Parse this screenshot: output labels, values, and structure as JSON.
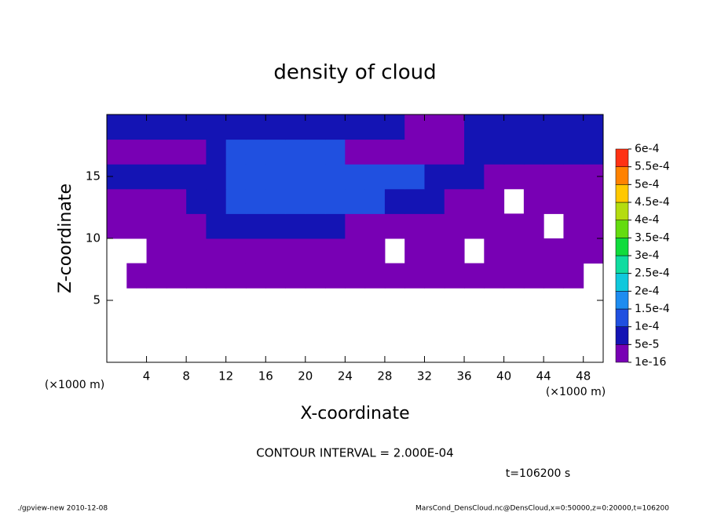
{
  "chart_data": {
    "type": "contour",
    "title": "density of cloud",
    "xlabel": "X-coordinate",
    "ylabel": "Z-coordinate",
    "x_unit": "(×1000 m)",
    "interval_note": "CONTOUR INTERVAL = 2.000E-04",
    "time_note": "t=106200 s",
    "footer_left": "./gpview-new  2010-12-08",
    "footer_right": "MarsCond_DensCloud.nc@DensCloud,x=0:50000,z=0:20000,t=106200",
    "xlim": [
      0,
      50
    ],
    "ylim": [
      0,
      20
    ],
    "xticks": [
      4,
      8,
      12,
      16,
      20,
      24,
      28,
      32,
      36,
      40,
      44,
      48
    ],
    "yticks": [
      5,
      10,
      15
    ],
    "x": [
      1,
      3,
      5,
      7,
      9,
      11,
      13,
      15,
      17,
      19,
      21,
      23,
      25,
      27,
      29,
      31,
      33,
      35,
      37,
      39,
      41,
      43,
      45,
      47,
      49
    ],
    "y": [
      1,
      3,
      5,
      7,
      9,
      11,
      13,
      15,
      17,
      19
    ],
    "z": [
      [
        null,
        null,
        null,
        null,
        null,
        null,
        null,
        null,
        null,
        null,
        null,
        null,
        null,
        null,
        null,
        null,
        null,
        null,
        null,
        null,
        null,
        null,
        null,
        null,
        null
      ],
      [
        null,
        null,
        null,
        null,
        null,
        null,
        null,
        null,
        null,
        null,
        null,
        null,
        null,
        null,
        null,
        null,
        null,
        null,
        null,
        null,
        null,
        null,
        null,
        null,
        null
      ],
      [
        null,
        null,
        null,
        null,
        null,
        null,
        null,
        null,
        null,
        null,
        null,
        null,
        null,
        null,
        null,
        null,
        null,
        null,
        null,
        null,
        null,
        null,
        null,
        null,
        null
      ],
      [
        null,
        2e-05,
        2e-05,
        2e-05,
        2e-05,
        2e-05,
        2e-05,
        2e-05,
        2e-05,
        2e-05,
        2e-05,
        2e-05,
        2e-05,
        2e-05,
        2e-05,
        2e-05,
        2e-05,
        2e-05,
        2e-05,
        2e-05,
        2e-05,
        2e-05,
        2e-05,
        2e-05,
        null
      ],
      [
        null,
        null,
        2e-05,
        2e-05,
        2e-05,
        2e-05,
        2e-05,
        2e-05,
        2e-05,
        2e-05,
        2e-05,
        2e-05,
        2e-05,
        3e-05,
        null,
        2e-05,
        2e-05,
        2e-05,
        null,
        2e-05,
        2e-05,
        2e-05,
        2e-05,
        2e-05,
        2e-05
      ],
      [
        3e-05,
        3e-05,
        3e-05,
        3e-05,
        3e-05,
        8e-05,
        8e-05,
        8e-05,
        8e-05,
        8e-05,
        8e-05,
        5e-05,
        3e-05,
        3e-05,
        3e-05,
        3e-05,
        3e-05,
        3e-05,
        3e-05,
        3e-05,
        3e-05,
        3e-05,
        null,
        3e-05,
        3e-05
      ],
      [
        4e-05,
        4e-05,
        4e-05,
        4e-05,
        7e-05,
        7e-05,
        0.00011,
        0.00011,
        0.00011,
        0.00011,
        0.00011,
        0.00011,
        0.00011,
        0.00011,
        8e-05,
        8e-05,
        8e-05,
        3e-05,
        3e-05,
        3e-05,
        null,
        3e-05,
        3e-05,
        3e-05,
        3e-05
      ],
      [
        7e-05,
        7e-05,
        7e-05,
        9e-05,
        9e-05,
        9e-05,
        0.00012,
        0.00012,
        0.00012,
        0.00012,
        0.00012,
        0.00012,
        0.00011,
        0.00011,
        0.00011,
        0.00011,
        6e-05,
        6e-05,
        6e-05,
        4e-05,
        4e-05,
        4e-05,
        4e-05,
        4e-05,
        4e-05
      ],
      [
        4e-05,
        4e-05,
        4e-05,
        4e-05,
        4e-05,
        6e-05,
        0.00011,
        0.00011,
        0.00011,
        0.00011,
        0.00011,
        0.00011,
        3e-05,
        3e-05,
        3e-05,
        3e-05,
        3e-05,
        3e-05,
        8e-05,
        8e-05,
        8e-05,
        8e-05,
        8e-05,
        8e-05,
        8e-05
      ],
      [
        7e-05,
        7e-05,
        7e-05,
        7e-05,
        7e-05,
        7e-05,
        7e-05,
        9e-05,
        9e-05,
        9e-05,
        9e-05,
        9e-05,
        9e-05,
        9e-05,
        9e-05,
        3e-05,
        3e-05,
        3e-05,
        7e-05,
        7e-05,
        7e-05,
        7e-05,
        7e-05,
        7e-05,
        7e-05
      ]
    ],
    "levels": [
      {
        "value": 1e-16,
        "label": "1e-16"
      },
      {
        "value": 5e-05,
        "label": "5e-5"
      },
      {
        "value": 0.0001,
        "label": "1e-4"
      },
      {
        "value": 0.00015,
        "label": "1.5e-4"
      },
      {
        "value": 0.0002,
        "label": "2e-4"
      },
      {
        "value": 0.00025,
        "label": "2.5e-4"
      },
      {
        "value": 0.0003,
        "label": "3e-4"
      },
      {
        "value": 0.00035,
        "label": "3.5e-4"
      },
      {
        "value": 0.0004,
        "label": "4e-4"
      },
      {
        "value": 0.00045,
        "label": "4.5e-4"
      },
      {
        "value": 0.0005,
        "label": "5e-4"
      },
      {
        "value": 0.00055,
        "label": "5.5e-4"
      },
      {
        "value": 0.0006,
        "label": "6e-4"
      }
    ],
    "colors": [
      "#7800b4",
      "#1414b4",
      "#2050e0",
      "#1e8cf0",
      "#10c8dc",
      "#10dca0",
      "#10dc3c",
      "#64dc10",
      "#b4dc10",
      "#ffc800",
      "#ff8200",
      "#ff3214"
    ]
  }
}
